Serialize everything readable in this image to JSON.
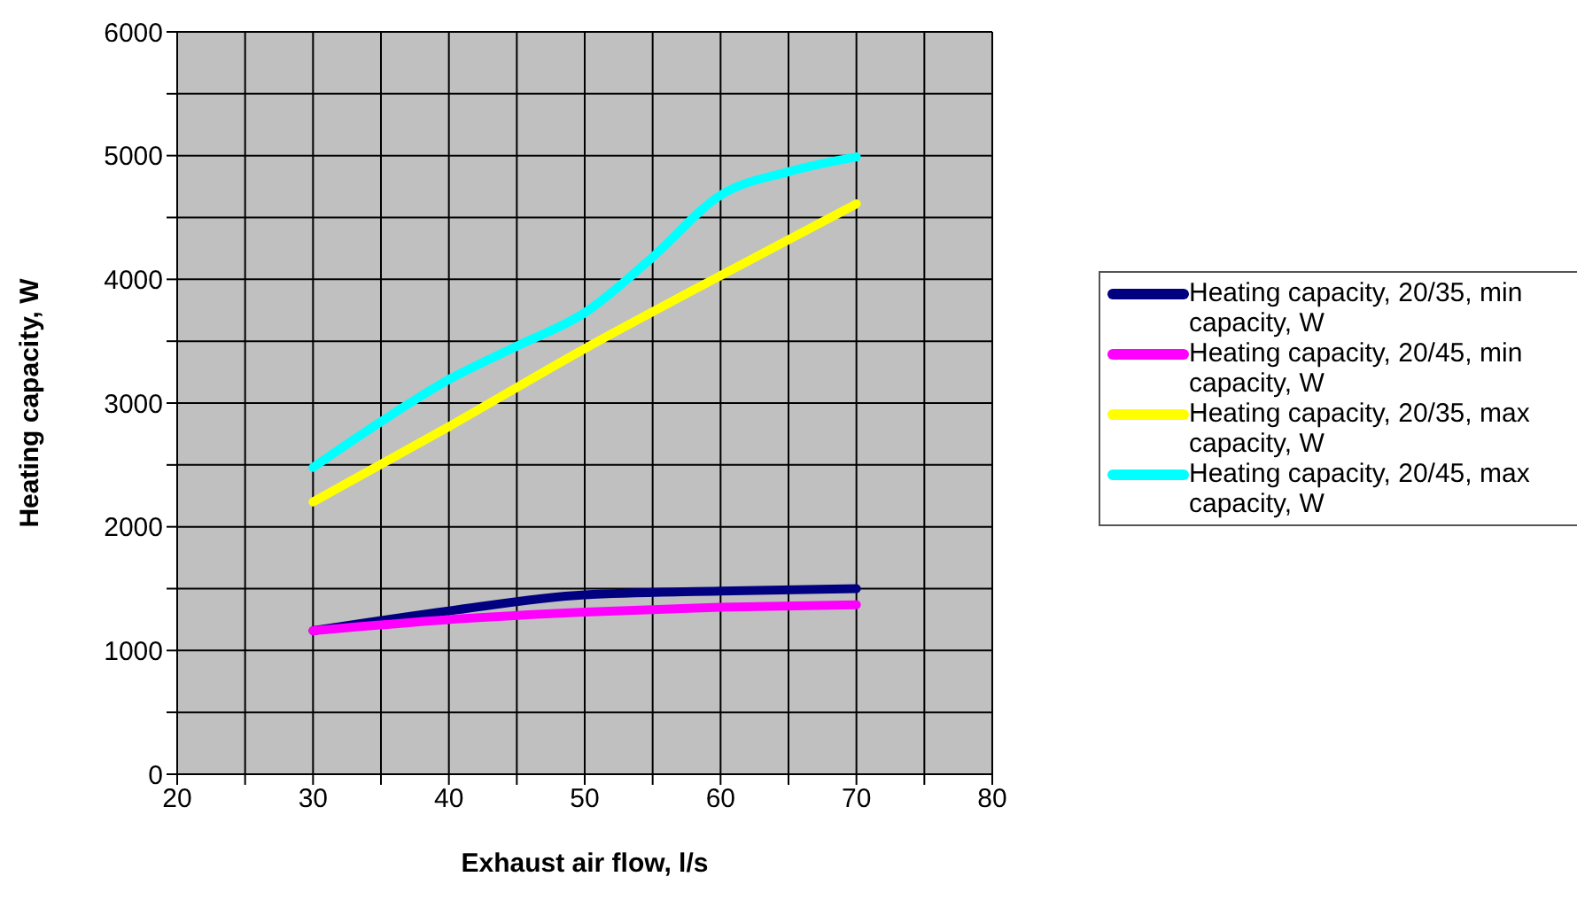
{
  "chart_data": {
    "type": "line",
    "xlabel": "Exhaust air flow, l/s",
    "ylabel": "Heating capacity, W",
    "xlim": [
      20,
      80
    ],
    "xticks": [
      20,
      {
        "value": 25,
        "label": null
      },
      30,
      {
        "value": 35,
        "label": null
      },
      40,
      {
        "value": 45,
        "label": null
      },
      50,
      {
        "value": 55,
        "label": null
      },
      60,
      {
        "value": 65,
        "label": null
      },
      70,
      {
        "value": 75,
        "label": null
      },
      80
    ],
    "ylim": [
      0,
      6000
    ],
    "yticks": [
      0,
      {
        "value": 500,
        "label": null
      },
      1000,
      {
        "value": 1500,
        "label": null
      },
      2000,
      {
        "value": 2500,
        "label": null
      },
      3000,
      {
        "value": 3500,
        "label": null
      },
      4000,
      {
        "value": 4500,
        "label": null
      },
      5000,
      {
        "value": 5500,
        "label": null
      },
      6000
    ],
    "grid": true,
    "legend": "right",
    "marker": "none",
    "line_style": "solid",
    "series": [
      {
        "name": "Heating capacity, 20/35, min capacity, W",
        "color": "#000080",
        "x": [
          30,
          40,
          50,
          60,
          70
        ],
        "values": [
          1160,
          1320,
          1450,
          1480,
          1500
        ]
      },
      {
        "name": "Heating capacity, 20/45, min capacity, W",
        "color": "#ff00ff",
        "x": [
          30,
          40,
          50,
          60,
          70
        ],
        "values": [
          1160,
          1250,
          1310,
          1350,
          1370
        ]
      },
      {
        "name": "Heating capacity, 20/35, max capacity, W",
        "color": "#ffff00",
        "x": [
          30,
          40,
          50,
          60,
          70
        ],
        "values": [
          2200,
          2810,
          3440,
          4030,
          4610
        ]
      },
      {
        "name": "Heating capacity, 20/45, max capacity, W",
        "color": "#00ffff",
        "x": [
          30,
          35,
          40,
          45,
          50,
          55,
          60,
          65,
          70
        ],
        "values": [
          2480,
          2850,
          3190,
          3460,
          3730,
          4180,
          4680,
          4870,
          4990
        ]
      }
    ]
  }
}
